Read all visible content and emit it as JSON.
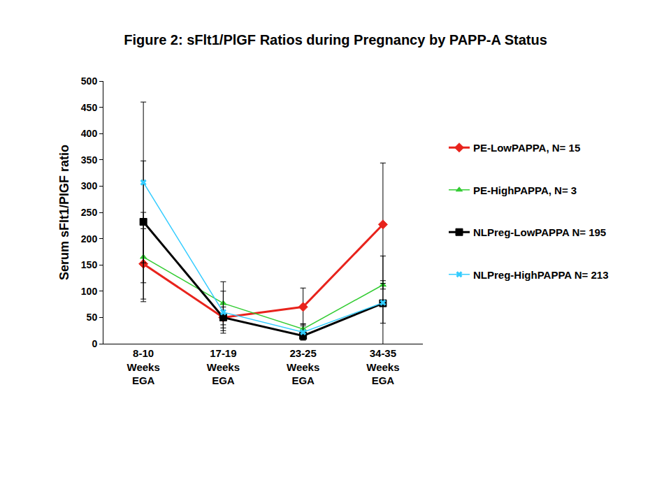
{
  "chart_data": {
    "type": "line",
    "title": "Figure 2: sFlt1/PlGF Ratios during Pregnancy by PAPP-A Status",
    "y_label": "Serum sFlt1/PlGF ratio",
    "categories": [
      "8-10 Weeks EGA",
      "17-19 Weeks EGA",
      "23-25 Weeks EGA",
      "34-35 Weeks EGA"
    ],
    "series": [
      {
        "name": "PE-LowPAPPA, N= 15",
        "color": "#e8231c",
        "marker": "diamond",
        "line_style": "thick",
        "values": [
          152,
          50,
          70,
          227
        ],
        "error": [
          67,
          25,
          36,
          117
        ]
      },
      {
        "name": "PE-HighPAPPA, N= 3",
        "color": "#33cc33",
        "marker": "triangle-up",
        "line_style": "thin",
        "values": [
          165,
          77,
          28,
          112
        ],
        "error": [
          85,
          41,
          10,
          8
        ]
      },
      {
        "name": "NLPreg-LowPAPPA N= 195",
        "color": "#000000",
        "marker": "square",
        "line_style": "thick",
        "values": [
          232,
          50,
          15,
          77
        ],
        "error": [
          116,
          20,
          8,
          38
        ]
      },
      {
        "name": "NLPreg-HighPAPPA N= 213",
        "color": "#33ccff",
        "marker": "x",
        "line_style": "thin",
        "values": [
          307,
          60,
          22,
          78
        ],
        "error": [
          153,
          40,
          15,
          89
        ]
      }
    ],
    "ylim": [
      0,
      500
    ],
    "yticks": [
      0,
      50,
      100,
      150,
      200,
      250,
      300,
      350,
      400,
      450,
      500
    ],
    "grid": false,
    "legend": "right"
  }
}
